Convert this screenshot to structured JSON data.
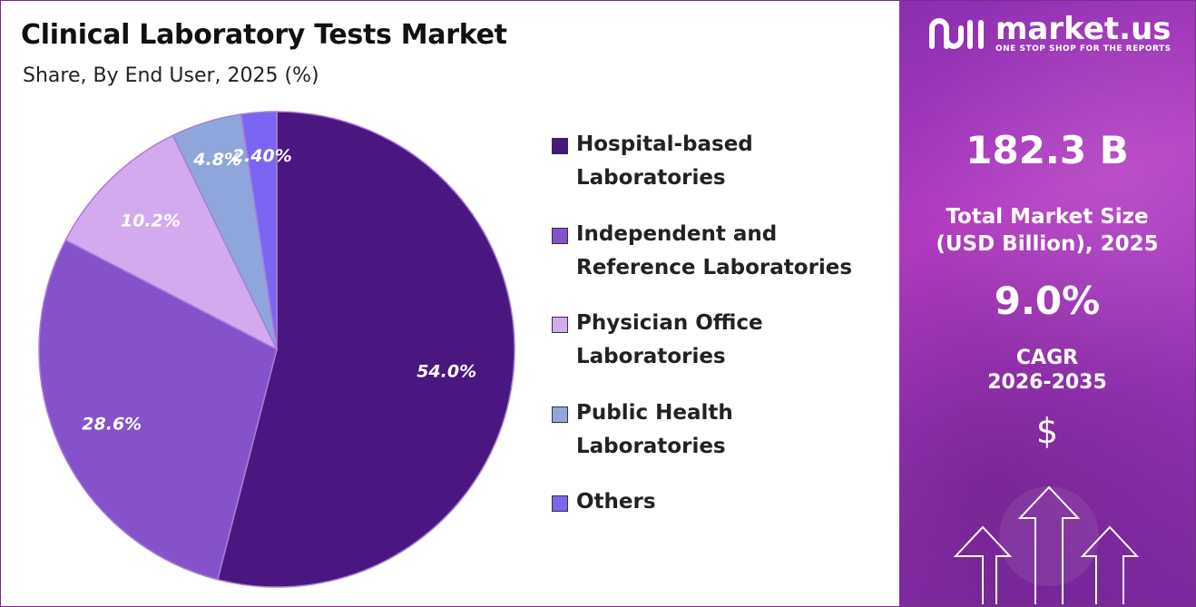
{
  "chart_title": "Clinical Laboratory Tests Market",
  "chart_subtitle": "Share, By End User, 2025 (%)",
  "chart_data": {
    "type": "pie",
    "title": "Clinical Laboratory Tests Market",
    "subtitle": "Share, By End User, 2025 (%)",
    "slices": [
      {
        "name": "Hospital-based Laboratories",
        "value": 54.0,
        "label": "54.0%",
        "color": "#4a1780"
      },
      {
        "name": "Independent and Reference Laboratories",
        "value": 28.6,
        "label": "28.6%",
        "color": "#8552cc"
      },
      {
        "name": "Physician Office Laboratories",
        "value": 10.2,
        "label": "10.2%",
        "color": "#d4aaee"
      },
      {
        "name": "Public Health Laboratories",
        "value": 4.8,
        "label": "4.8%",
        "color": "#8fa6dc"
      },
      {
        "name": "Others",
        "value": 2.4,
        "label": "2.40%",
        "color": "#7a66f2"
      }
    ],
    "legend_position": "right"
  },
  "legend": [
    {
      "line1": "Hospital-based",
      "line2": "Laboratories",
      "color": "#4a1780"
    },
    {
      "line1": "Independent and",
      "line2": "Reference Laboratories",
      "color": "#8552cc"
    },
    {
      "line1": "Physician Office",
      "line2": "Laboratories",
      "color": "#d4aaee"
    },
    {
      "line1": "Public Health Laboratories",
      "line2": "",
      "color": "#8fa6dc"
    },
    {
      "line1": "Others",
      "line2": "",
      "color": "#7a66f2"
    }
  ],
  "panel": {
    "brand_name": "market.us",
    "brand_tagline": "ONE STOP SHOP FOR THE REPORTS",
    "market_size_value": "182.3 B",
    "market_size_label_1": "Total Market Size",
    "market_size_label_2": "(USD Billion), 2025",
    "cagr_value": "9.0%",
    "cagr_label_1": "CAGR",
    "cagr_label_2": "2026-2035",
    "currency_symbol": "$"
  },
  "icons": [
    "market-us-logo-icon",
    "dollar-icon",
    "up-arrow-icon"
  ]
}
